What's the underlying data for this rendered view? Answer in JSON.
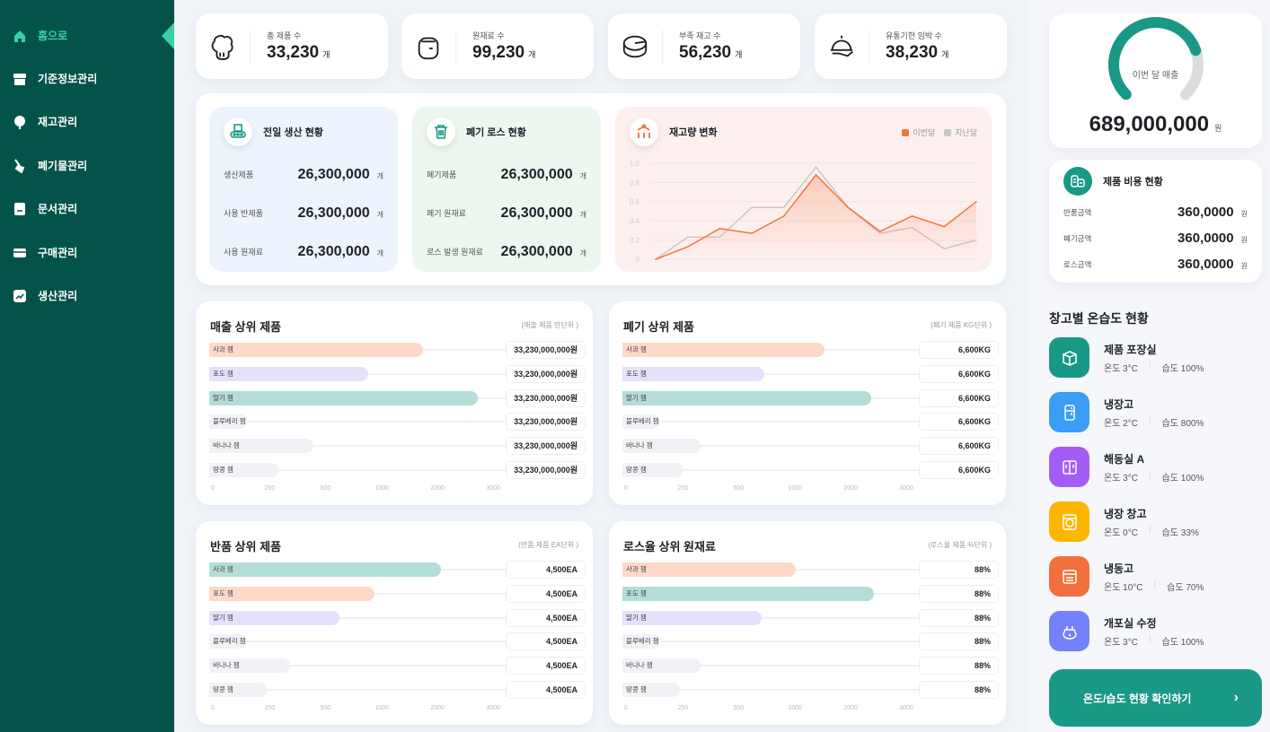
{
  "sidebar": {
    "items": [
      {
        "label": "홈으로",
        "icon": "home-icon",
        "active": true
      },
      {
        "label": "기준정보관리",
        "icon": "store-icon"
      },
      {
        "label": "재고관리",
        "icon": "tree-icon"
      },
      {
        "label": "폐기물관리",
        "icon": "broom-icon"
      },
      {
        "label": "문서관리",
        "icon": "document-icon"
      },
      {
        "label": "구매관리",
        "icon": "card-icon"
      },
      {
        "label": "생산관리",
        "icon": "chart-icon"
      }
    ]
  },
  "stats": [
    {
      "label": "총 제품 수",
      "value": "33,230",
      "unit": "개",
      "icon": "chef-hat-icon"
    },
    {
      "label": "원재료 수",
      "value": "99,230",
      "unit": "개",
      "icon": "jar-icon"
    },
    {
      "label": "부족 재고 수",
      "value": "56,230",
      "unit": "개",
      "icon": "cheese-icon"
    },
    {
      "label": "유통기한 임박 수",
      "value": "38,230",
      "unit": "개",
      "icon": "cloche-icon"
    }
  ],
  "production": {
    "title": "전일 생산 현황",
    "rows": [
      {
        "label": "생산제품",
        "value": "26,300,000",
        "unit": "개"
      },
      {
        "label": "사용 반제품",
        "value": "26,300,000",
        "unit": "개"
      },
      {
        "label": "사용 원재료",
        "value": "26,300,000",
        "unit": "개"
      }
    ]
  },
  "waste": {
    "title": "폐기 로스 현황",
    "rows": [
      {
        "label": "폐기제품",
        "value": "26,300,000",
        "unit": "개"
      },
      {
        "label": "폐기 원재료",
        "value": "26,300,000",
        "unit": "개"
      },
      {
        "label": "로스 발생 원재료",
        "value": "26,300,000",
        "unit": "개"
      }
    ]
  },
  "chart_data": {
    "type": "line",
    "title": "재고량 변화",
    "ylim": [
      0,
      1.0
    ],
    "yticks": [
      "0",
      "0.2",
      "0.4",
      "0.6",
      "0.8",
      "1.0"
    ],
    "grid": true,
    "legend": "top-right",
    "series": [
      {
        "name": "이번달",
        "color": "#F4743B",
        "fill": true,
        "values": [
          0,
          0.13,
          0.32,
          0.27,
          0.45,
          0.88,
          0.54,
          0.29,
          0.45,
          0.34,
          0.6
        ]
      },
      {
        "name": "지난달",
        "color": "#C8C8C8",
        "values": [
          0,
          0.23,
          0.23,
          0.54,
          0.54,
          0.96,
          0.54,
          0.27,
          0.33,
          0.11,
          0.2
        ]
      }
    ]
  },
  "bar_panels": [
    {
      "title": "매출 상위 제품",
      "unit": "(매출 제품 만단위 )",
      "ticks": [
        "0",
        "250",
        "500",
        "1000",
        "2000",
        "3000"
      ],
      "rows": [
        {
          "label": "사과 잼",
          "fill": 0.74,
          "color": "#FFD9C8",
          "value": "33,230,000,000원"
        },
        {
          "label": "포도 잼",
          "fill": 0.55,
          "color": "#E6E0FD",
          "value": "33,230,000,000원"
        },
        {
          "label": "딸기 잼",
          "fill": 0.93,
          "color": "#B3DDD6",
          "value": "33,230,000,000원"
        },
        {
          "label": "블루베리 잼",
          "fill": 0.13,
          "color": "#F2F2F6",
          "value": "33,230,000,000원"
        },
        {
          "label": "바나나 잼",
          "fill": 0.36,
          "color": "#F2F2F6",
          "value": "33,230,000,000원"
        },
        {
          "label": "땅콩 잼",
          "fill": 0.24,
          "color": "#F2F2F6",
          "value": "33,230,000,000원"
        }
      ]
    },
    {
      "title": "폐기 상위 제품",
      "unit": "(폐기 제품 KG단위 )",
      "ticks": [
        "0",
        "250",
        "500",
        "1000",
        "2000",
        "3000"
      ],
      "rows": [
        {
          "label": "사과 잼",
          "fill": 0.7,
          "color": "#FFD9C8",
          "value": "6,600KG"
        },
        {
          "label": "포도 잼",
          "fill": 0.49,
          "color": "#E6E0FD",
          "value": "6,600KG"
        },
        {
          "label": "딸기 잼",
          "fill": 0.86,
          "color": "#B3DDD6",
          "value": "6,600KG"
        },
        {
          "label": "블루베리 잼",
          "fill": 0.13,
          "color": "#F2F2F6",
          "value": "6,600KG"
        },
        {
          "label": "바나나 잼",
          "fill": 0.27,
          "color": "#F2F2F6",
          "value": "6,600KG"
        },
        {
          "label": "땅콩 잼",
          "fill": 0.21,
          "color": "#F2F2F6",
          "value": "6,600KG"
        }
      ]
    },
    {
      "title": "반품 상위 제품",
      "unit": "(반품 제품 EA단위 )",
      "ticks": [
        "0",
        "250",
        "500",
        "1000",
        "2000",
        "3000"
      ],
      "rows": [
        {
          "label": "사과 잼",
          "fill": 0.8,
          "color": "#B3DDD6",
          "value": "4,500EA"
        },
        {
          "label": "포도 잼",
          "fill": 0.57,
          "color": "#FFD9C8",
          "value": "4,500EA"
        },
        {
          "label": "딸기 잼",
          "fill": 0.45,
          "color": "#E6E0FD",
          "value": "4,500EA"
        },
        {
          "label": "블루베리 잼",
          "fill": 0.13,
          "color": "#F2F2F6",
          "value": "4,500EA"
        },
        {
          "label": "바나나 잼",
          "fill": 0.28,
          "color": "#F2F2F6",
          "value": "4,500EA"
        },
        {
          "label": "땅콩 잼",
          "fill": 0.2,
          "color": "#F2F2F6",
          "value": "4,500EA"
        }
      ]
    },
    {
      "title": "로스율 상위 원재료",
      "unit": "(로스율 제품 %단위 )",
      "ticks": [
        "0",
        "250",
        "500",
        "1000",
        "2000",
        "3000"
      ],
      "rows": [
        {
          "label": "사과 잼",
          "fill": 0.6,
          "color": "#FFD9C8",
          "value": "88%"
        },
        {
          "label": "포도 잼",
          "fill": 0.87,
          "color": "#B3DDD6",
          "value": "88%"
        },
        {
          "label": "딸기 잼",
          "fill": 0.48,
          "color": "#E6E0FD",
          "value": "88%"
        },
        {
          "label": "블루베리 잼",
          "fill": 0.13,
          "color": "#F2F2F6",
          "value": "88%"
        },
        {
          "label": "바나나 잼",
          "fill": 0.27,
          "color": "#F2F2F6",
          "value": "88%"
        },
        {
          "label": "땅콩 잼",
          "fill": 0.2,
          "color": "#F2F2F6",
          "value": "88%"
        }
      ]
    }
  ],
  "sales": {
    "label": "이번 달 매출",
    "value": "689,000,000",
    "unit": "원",
    "progress": 0.76,
    "color": "#1A9886"
  },
  "cost": {
    "title": "제품 비용 현황",
    "rows": [
      {
        "label": "반품금액",
        "value": "360,0000",
        "unit": "원"
      },
      {
        "label": "폐기금액",
        "value": "360,0000",
        "unit": "원"
      },
      {
        "label": "로스금액",
        "value": "360,0000",
        "unit": "원"
      }
    ]
  },
  "warehouse": {
    "title": "창고별 온습도 현황",
    "items": [
      {
        "name": "제품 포장실",
        "temp": "온도 3°C",
        "hum": "습도 100%",
        "color": "#1A9886",
        "icon": "box-icon"
      },
      {
        "name": "냉장고",
        "temp": "온도 2°C",
        "hum": "습도 800%",
        "color": "#3B9DF5",
        "icon": "fridge-icon"
      },
      {
        "name": "해동실 A",
        "temp": "온도 3°C",
        "hum": "습도 100%",
        "color": "#A45CF6",
        "icon": "double-door-icon"
      },
      {
        "name": "냉장 창고",
        "temp": "온도 0°C",
        "hum": "습도 33%",
        "color": "#FDB600",
        "icon": "washer-icon"
      },
      {
        "name": "냉동고",
        "temp": "온도 10°C",
        "hum": "습도 70%",
        "color": "#F2703D",
        "icon": "oven-icon"
      },
      {
        "name": "개포실 수정",
        "temp": "온도 3°C",
        "hum": "습도 100%",
        "color": "#7381FA",
        "icon": "pot-icon"
      }
    ],
    "button": "온도/습도 현황 확인하기"
  }
}
